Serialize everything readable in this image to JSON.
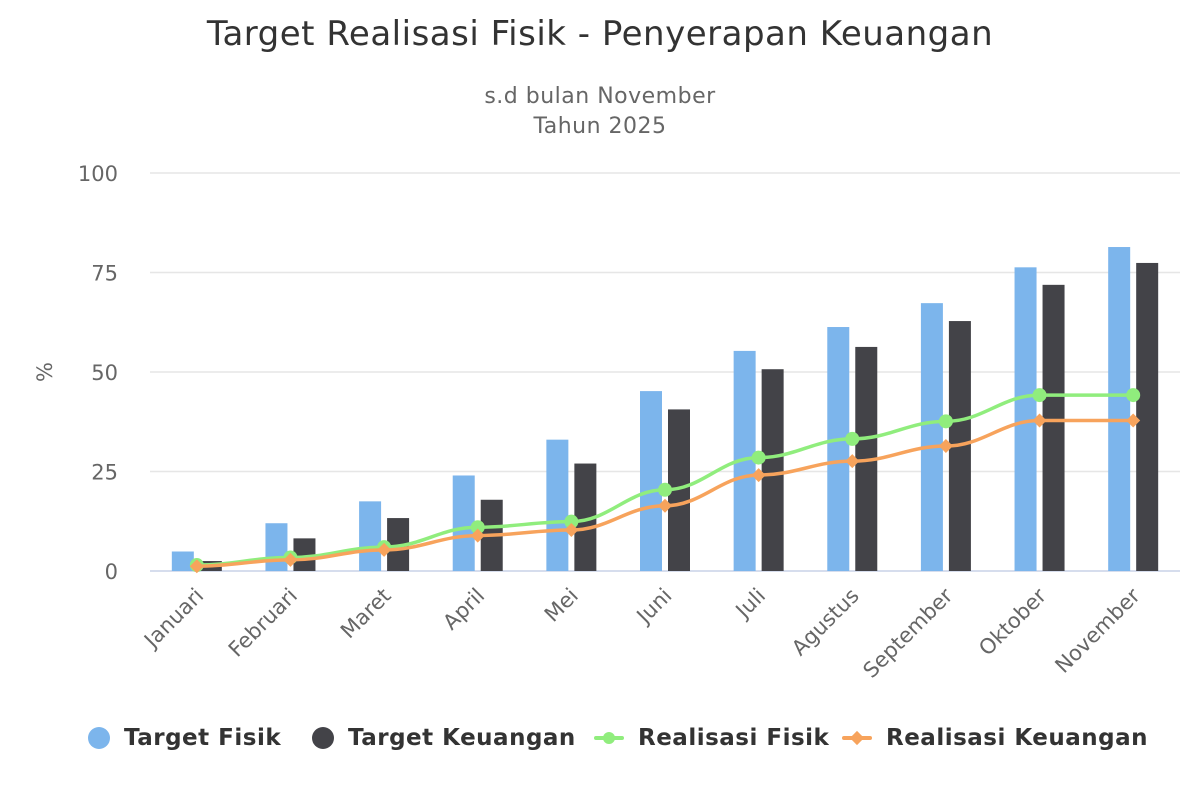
{
  "chart_data": {
    "type": "bar",
    "title": "Target Realisasi Fisik - Penyerapan Keuangan",
    "subtitle": [
      "s.d bulan November",
      "Tahun 2025"
    ],
    "ylabel": "%",
    "ylim": [
      0,
      100
    ],
    "yticks": [
      "0",
      "25",
      "50",
      "75",
      "100"
    ],
    "grid": true,
    "legend_position": "bottom",
    "categories": [
      "Januari",
      "Februari",
      "Maret",
      "April",
      "Mei",
      "Juni",
      "Juli",
      "Agustus",
      "September",
      "Oktober",
      "November"
    ],
    "series": [
      {
        "name": "Target Fisik",
        "kind": "bar",
        "color": "#7cb5ec",
        "values": [
          4.9,
          12,
          17.5,
          24,
          33,
          45.2,
          55.3,
          61.3,
          67.3,
          76.3,
          81.4
        ]
      },
      {
        "name": "Target Keuangan",
        "kind": "bar",
        "color": "#434348",
        "values": [
          2.5,
          8.2,
          13.3,
          17.9,
          27,
          40.6,
          50.7,
          56.3,
          62.8,
          71.9,
          77.4
        ]
      },
      {
        "name": "Realisasi Fisik",
        "kind": "line",
        "marker": "circle",
        "color": "#90ed7d",
        "values": [
          1.5,
          3.4,
          6,
          11,
          12.4,
          20.4,
          28.5,
          33.2,
          37.6,
          44.2,
          44.2
        ]
      },
      {
        "name": "Realisasi Keuangan",
        "kind": "line",
        "marker": "diamond",
        "color": "#f7a35c",
        "values": [
          1.2,
          2.8,
          5.3,
          8.9,
          10.3,
          16.4,
          24.1,
          27.6,
          31.4,
          37.8,
          37.8
        ]
      }
    ]
  }
}
